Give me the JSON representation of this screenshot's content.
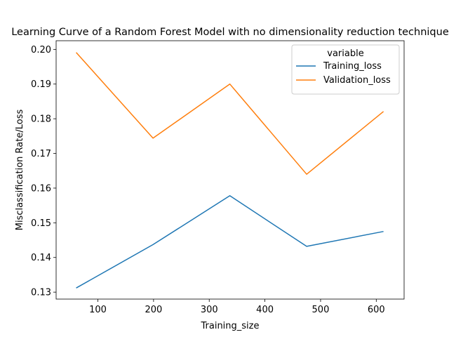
{
  "chart_data": {
    "type": "line",
    "title": "Learning Curve of a Random Forest Model with no dimensionality reduction technique",
    "xlabel": "Training_size",
    "ylabel": "Misclassification Rate/Loss",
    "xlim": [
      25,
      650
    ],
    "ylim": [
      0.128,
      0.2025
    ],
    "x_ticks": [
      100,
      200,
      300,
      400,
      500,
      600
    ],
    "y_ticks": [
      0.13,
      0.14,
      0.15,
      0.16,
      0.17,
      0.18,
      0.19,
      0.2
    ],
    "y_tick_labels": [
      "0.13",
      "0.14",
      "0.15",
      "0.16",
      "0.17",
      "0.18",
      "0.19",
      "0.20"
    ],
    "grid": false,
    "legend": {
      "title": "variable",
      "placement": "top-right"
    },
    "x": [
      61,
      199,
      337,
      475,
      613
    ],
    "series": [
      {
        "name": "Training_loss",
        "color": "#1f77b4",
        "values": [
          0.1312,
          0.1437,
          0.1578,
          0.1432,
          0.1475
        ]
      },
      {
        "name": "Validation_loss",
        "color": "#ff7f0e",
        "values": [
          0.1991,
          0.1744,
          0.19,
          0.164,
          0.1821
        ]
      }
    ]
  }
}
